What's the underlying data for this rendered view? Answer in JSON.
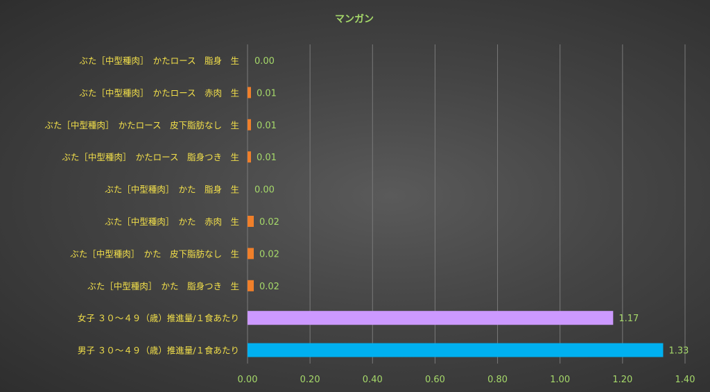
{
  "chart_data": {
    "type": "bar",
    "orientation": "horizontal",
    "title": "マンガン",
    "categories": [
      "ぶた［中型種肉］　かたロース　脂身　生",
      "ぶた［中型種肉］　かたロース　赤肉　生",
      "ぶた［中型種肉］　かたロース　皮下脂肪なし　生",
      "ぶた［中型種肉］　かたロース　脂身つき　生",
      "ぶた［中型種肉］　かた　脂身　生",
      "ぶた［中型種肉］　かた　赤肉　生",
      "ぶた［中型種肉］　かた　皮下脂肪なし　生",
      "ぶた［中型種肉］　かた　脂身つき　生",
      "女子 ３０～４９（歳）推進量/１食あたり",
      "男子 ３０～４９（歳）推進量/１食あたり"
    ],
    "values": [
      0.0,
      0.01,
      0.01,
      0.01,
      0.0,
      0.02,
      0.02,
      0.02,
      1.17,
      1.33
    ],
    "data_labels": [
      "0.00",
      "0.01",
      "0.01",
      "0.01",
      "0.00",
      "0.02",
      "0.02",
      "0.02",
      "1.17",
      "1.33"
    ],
    "bar_colors": [
      "#f07f2a",
      "#f07f2a",
      "#f07f2a",
      "#f07f2a",
      "#f07f2a",
      "#f07f2a",
      "#f07f2a",
      "#f07f2a",
      "#cc99ff",
      "#00b0f0"
    ],
    "xlim": [
      0,
      1.4
    ],
    "xticks": [
      "0.00",
      "0.20",
      "0.40",
      "0.60",
      "0.80",
      "1.00",
      "1.20",
      "1.40"
    ],
    "grid": true,
    "colors": {
      "title": "#a6d96a",
      "category_label": "#f3e04a",
      "tick_label": "#a6d96a",
      "data_label": "#a6d96a",
      "grid": "#7a7a7a"
    }
  }
}
